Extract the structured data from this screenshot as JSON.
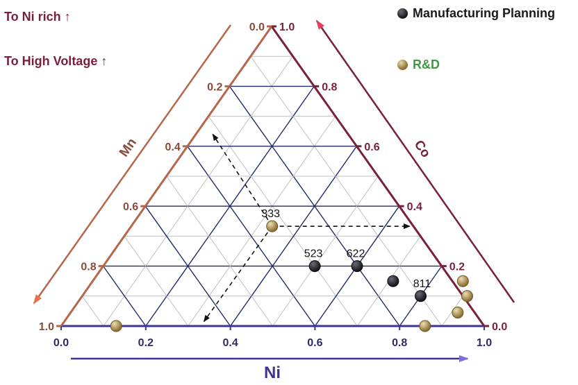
{
  "annotations": {
    "ni_rich": "To Ni rich ↑",
    "high_voltage": "To High Voltage ↑"
  },
  "colors": {
    "manufacturing": "#26232e",
    "rnd": "#a98e4f",
    "axis_ni": "#3b3590",
    "axis_co": "#7a1f3a",
    "axis_mn": "#b5664a",
    "grid_dark": "#1f2a6a",
    "grid_light": "#bfbfbf",
    "rnd_text": "#3f9a3f",
    "manufacturing_text": "#1a1a1a"
  },
  "chart_data": {
    "type": "ternary-scatter",
    "axes": {
      "bottom": {
        "label": "Ni",
        "ticks": [
          "0.0",
          "0.2",
          "0.4",
          "0.6",
          "0.8",
          "1.0"
        ]
      },
      "right": {
        "label": "Co",
        "ticks": [
          "0.0",
          "0.2",
          "0.4",
          "0.6",
          "0.8",
          "1.0"
        ]
      },
      "left": {
        "label": "Mn",
        "ticks": [
          "0.0",
          "0.2",
          "0.4",
          "0.6",
          "0.8",
          "1.0"
        ]
      }
    },
    "legend": {
      "placement": "top-right",
      "entries": [
        {
          "name": "Manufacturing Planning",
          "color": "#26232e"
        },
        {
          "name": "R&D",
          "color": "#a98e4f"
        }
      ]
    },
    "series": [
      {
        "name": "Manufacturing Planning",
        "points": [
          {
            "ni": 0.5,
            "co": 0.2,
            "mn": 0.3,
            "label": "523"
          },
          {
            "ni": 0.6,
            "co": 0.2,
            "mn": 0.2,
            "label": "622"
          },
          {
            "ni": 0.71,
            "co": 0.15,
            "mn": 0.14,
            "label": ""
          },
          {
            "ni": 0.8,
            "co": 0.1,
            "mn": 0.1,
            "label": "811"
          }
        ]
      },
      {
        "name": "R&D",
        "points": [
          {
            "ni": 0.333,
            "co": 0.333,
            "mn": 0.334,
            "label": "333"
          },
          {
            "ni": 0.13,
            "co": 0.0,
            "mn": 0.87,
            "label": ""
          },
          {
            "ni": 0.86,
            "co": 0.0,
            "mn": 0.14,
            "label": ""
          },
          {
            "ni": 0.875,
            "co": 0.15,
            "mn": -0.025,
            "label": ""
          },
          {
            "ni": 0.91,
            "co": 0.1,
            "mn": -0.01,
            "label": ""
          },
          {
            "ni": 0.915,
            "co": 0.045,
            "mn": 0.04,
            "label": ""
          }
        ]
      }
    ]
  }
}
